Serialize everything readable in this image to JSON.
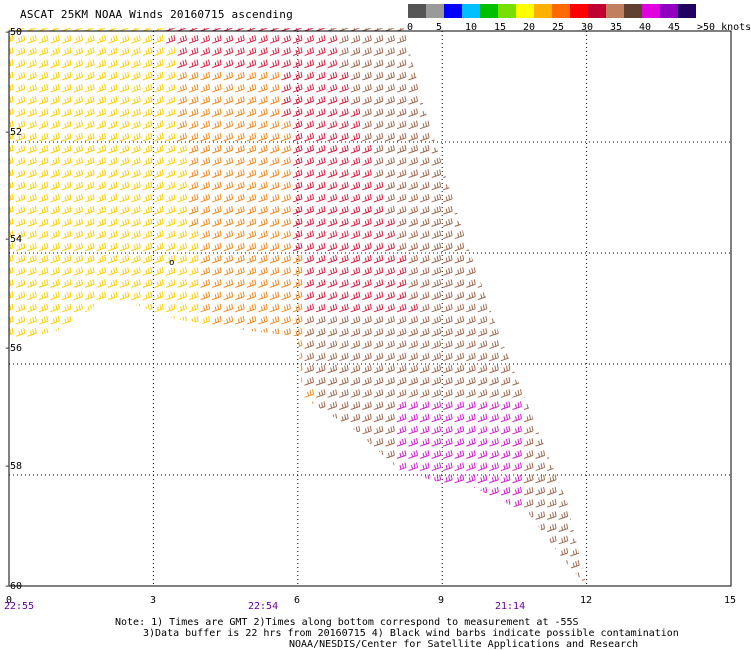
{
  "title": "ASCAT 25KM NOAA Winds 20160715 ascending",
  "legend": {
    "colors": [
      "#555555",
      "#9a9a9a",
      "#0000ff",
      "#00bfff",
      "#00c000",
      "#77e000",
      "#ffff00",
      "#ffb000",
      "#ff6a00",
      "#ff0000",
      "#c00030",
      "#c08060",
      "#604030",
      "#e000e0",
      "#9000c0",
      "#200060"
    ],
    "labels": [
      "0",
      "5",
      "10",
      "15",
      "20",
      "25",
      "30",
      "35",
      "40",
      "45",
      ">50 knots"
    ]
  },
  "map": {
    "lat_ticks": [
      "-50",
      "-52",
      "-54",
      "-56",
      "-58",
      "-60"
    ],
    "lon_ticks": [
      "0",
      "3",
      "6",
      "9",
      "12",
      "15"
    ],
    "lon_range": [
      0,
      15
    ],
    "lat_range": [
      -50,
      -60
    ],
    "pass_times": [
      "22:55",
      "22:54",
      "21:14"
    ],
    "annotation_marker": "o",
    "swath_polygon": [
      [
        0,
        -49.95
      ],
      [
        8.2,
        -49.95
      ],
      [
        8.6,
        -51.3
      ],
      [
        9.5,
        -53.8
      ],
      [
        10.2,
        -55.5
      ],
      [
        10.9,
        -57.0
      ],
      [
        11.6,
        -58.5
      ],
      [
        12.0,
        -60.0
      ],
      [
        11.5,
        -59.5
      ],
      [
        10.8,
        -58.7
      ],
      [
        9.6,
        -58.2
      ],
      [
        8.8,
        -58.1
      ],
      [
        8.1,
        -57.9
      ],
      [
        7.2,
        -57.2
      ],
      [
        6.1,
        -56.6
      ],
      [
        6.0,
        -55.5
      ],
      [
        5.0,
        -55.4
      ],
      [
        3.5,
        -55.2
      ],
      [
        2.5,
        -54.9
      ],
      [
        1.9,
        -54.9
      ],
      [
        1.0,
        -55.4
      ],
      [
        0,
        -55.6
      ]
    ],
    "wind_zones": [
      {
        "region": "west",
        "speed_kt": 25,
        "color": "#ffd000"
      },
      {
        "region": "northwest",
        "speed_kt": 30,
        "color": "#f08a20"
      },
      {
        "region": "north-central",
        "speed_kt": 35,
        "color": "#d82040"
      },
      {
        "region": "east",
        "speed_kt": 40,
        "color": "#a06a50"
      },
      {
        "region": "southeast",
        "speed_kt": 45,
        "color": "#d020d0"
      }
    ]
  },
  "notes": [
    "Note: 1) Times are GMT 2)Times along bottom correspond to measurement at -55S",
    "3)Data buffer is 22 hrs from 20160715 4) Black wind barbs indicate possible contamination",
    "NOAA/NESDIS/Center for Satellite Applications and Research"
  ]
}
